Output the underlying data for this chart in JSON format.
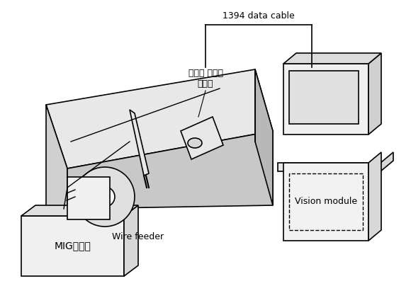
{
  "title": "",
  "bg_color": "#ffffff",
  "line_color": "#000000",
  "gray_color": "#aaaaaa",
  "light_gray": "#cccccc",
  "dark_gray": "#888888",
  "cable_label": "1394 data cable",
  "camera_label": "적외선 열화상\n카메라",
  "wire_feeder_label": "Wire feeder",
  "mig_label": "MIG용접기",
  "vision_label": "Vision module",
  "figsize": [
    5.8,
    4.04
  ],
  "dpi": 100
}
